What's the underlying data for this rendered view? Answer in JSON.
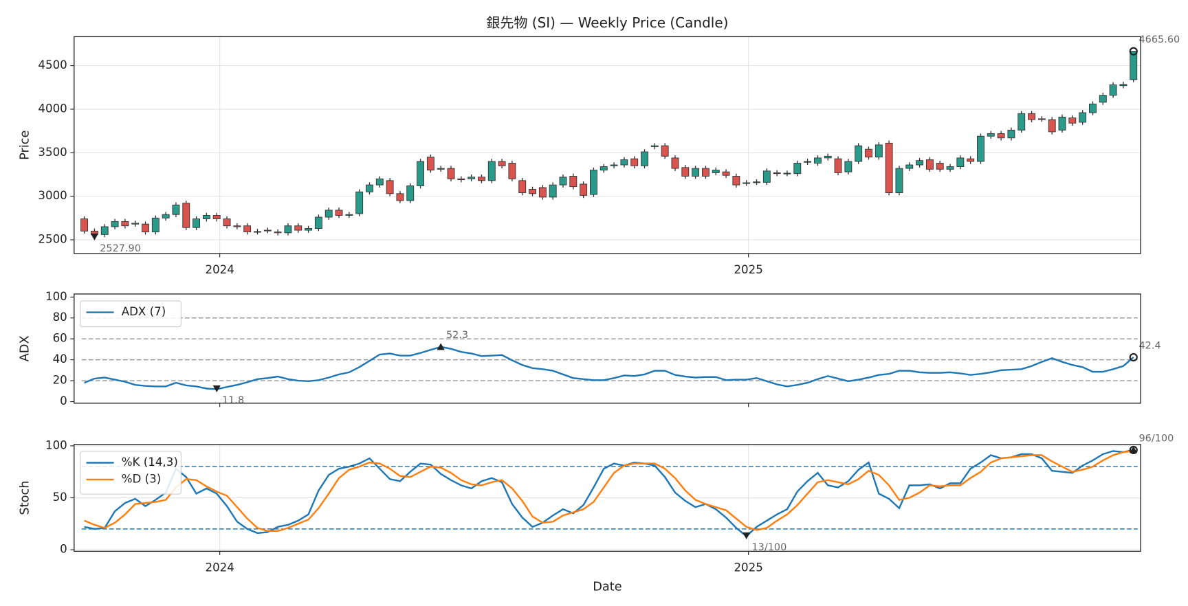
{
  "chart_data": [
    {
      "type": "candle",
      "title": "銀先物 (SI) — Weekly Price (Candle)",
      "ylabel": "Price",
      "xlim": [
        -1,
        103.7
      ],
      "ylim": [
        2342,
        4833
      ],
      "xticks": [
        {
          "value": 13.3,
          "label": "2024"
        },
        {
          "value": 65.2,
          "label": "2025"
        }
      ],
      "yticks": [
        2500,
        3000,
        3500,
        4000,
        4500
      ],
      "grid": true,
      "up_color": "#2a9a8a",
      "down_color": "#d9534f",
      "open": [
        2740,
        2600,
        2560,
        2650,
        2710,
        2680,
        2680,
        2590,
        2750,
        2790,
        2920,
        2640,
        2740,
        2780,
        2740,
        2660,
        2660,
        2590,
        2610,
        2590,
        2580,
        2660,
        2610,
        2630,
        2760,
        2840,
        2780,
        2800,
        3050,
        3130,
        3180,
        3030,
        2950,
        3120,
        3450,
        3310,
        3320,
        3200,
        3200,
        3220,
        3180,
        3400,
        3380,
        3180,
        3080,
        3100,
        2990,
        3130,
        3230,
        3140,
        3020,
        3300,
        3350,
        3360,
        3430,
        3350,
        3570,
        3580,
        3440,
        3330,
        3230,
        3320,
        3270,
        3280,
        3230,
        3150,
        3160,
        3160,
        3270,
        3260,
        3260,
        3390,
        3380,
        3440,
        3430,
        3280,
        3400,
        3540,
        3450,
        3610,
        3040,
        3320,
        3360,
        3420,
        3380,
        3310,
        3340,
        3430,
        3400,
        3690,
        3720,
        3670,
        3760,
        3950,
        3890,
        3880,
        3760,
        3900,
        3850,
        3960,
        4080,
        4160,
        4270,
        4340
      ],
      "high": [
        2770,
        2630,
        2680,
        2740,
        2740,
        2720,
        2710,
        2780,
        2820,
        2930,
        2950,
        2770,
        2810,
        2810,
        2770,
        2690,
        2690,
        2625,
        2640,
        2620,
        2690,
        2690,
        2660,
        2790,
        2870,
        2870,
        2820,
        3080,
        3160,
        3230,
        3210,
        3060,
        3150,
        3430,
        3480,
        3350,
        3350,
        3230,
        3250,
        3250,
        3430,
        3430,
        3410,
        3210,
        3110,
        3130,
        3160,
        3250,
        3260,
        3170,
        3330,
        3370,
        3390,
        3450,
        3460,
        3540,
        3610,
        3610,
        3470,
        3360,
        3350,
        3350,
        3330,
        3310,
        3260,
        3185,
        3195,
        3320,
        3300,
        3295,
        3410,
        3430,
        3470,
        3490,
        3460,
        3430,
        3610,
        3570,
        3620,
        3640,
        3350,
        3390,
        3440,
        3450,
        3410,
        3370,
        3470,
        3460,
        3720,
        3750,
        3750,
        3790,
        3980,
        3980,
        3920,
        3910,
        3940,
        3930,
        3990,
        4090,
        4190,
        4310,
        4315,
        4665.6
      ],
      "low": [
        2570,
        2527.9,
        2530,
        2620,
        2630,
        2650,
        2560,
        2560,
        2720,
        2760,
        2610,
        2610,
        2710,
        2710,
        2630,
        2620,
        2560,
        2560,
        2575,
        2550,
        2550,
        2580,
        2580,
        2600,
        2730,
        2750,
        2750,
        2770,
        3020,
        3100,
        3000,
        2920,
        2920,
        3090,
        3270,
        3280,
        3170,
        3160,
        3170,
        3150,
        3150,
        3320,
        3170,
        3010,
        3000,
        2960,
        2960,
        3100,
        3080,
        2980,
        2990,
        3270,
        3320,
        3330,
        3320,
        3320,
        3540,
        3430,
        3290,
        3200,
        3200,
        3200,
        3240,
        3210,
        3100,
        3120,
        3130,
        3130,
        3230,
        3230,
        3230,
        3360,
        3350,
        3410,
        3240,
        3250,
        3370,
        3420,
        3420,
        3010,
        3010,
        3290,
        3330,
        3280,
        3280,
        3280,
        3310,
        3370,
        3370,
        3660,
        3640,
        3640,
        3730,
        3850,
        3855,
        3710,
        3730,
        3810,
        3820,
        3930,
        4050,
        4130,
        4240,
        4310
      ],
      "close": [
        2600,
        2560,
        2650,
        2710,
        2660,
        2690,
        2590,
        2750,
        2790,
        2900,
        2640,
        2740,
        2780,
        2740,
        2660,
        2650,
        2590,
        2595,
        2605,
        2580,
        2660,
        2610,
        2630,
        2760,
        2840,
        2780,
        2790,
        3050,
        3130,
        3200,
        3030,
        2950,
        3120,
        3400,
        3300,
        3320,
        3200,
        3190,
        3220,
        3180,
        3400,
        3350,
        3200,
        3040,
        3030,
        2990,
        3130,
        3220,
        3110,
        3010,
        3300,
        3340,
        3360,
        3420,
        3350,
        3510,
        3580,
        3460,
        3320,
        3230,
        3320,
        3230,
        3300,
        3240,
        3130,
        3155,
        3165,
        3290,
        3260,
        3265,
        3380,
        3400,
        3440,
        3460,
        3270,
        3400,
        3580,
        3450,
        3590,
        3040,
        3320,
        3360,
        3410,
        3310,
        3310,
        3340,
        3440,
        3400,
        3690,
        3720,
        3670,
        3760,
        3950,
        3880,
        3885,
        3740,
        3910,
        3840,
        3960,
        4060,
        4160,
        4280,
        4285,
        4665.6
      ],
      "annotations": [
        {
          "x": 1,
          "value": 2527.9,
          "label": "2527.90",
          "marker": [
            "down"
          ]
        },
        {
          "x": 103,
          "value": 4665.6,
          "label": "4665.60",
          "marker": [
            "circle"
          ]
        }
      ]
    },
    {
      "type": "line",
      "ylabel": "ADX",
      "xlim": [
        -1,
        103.7
      ],
      "ylim": [
        -1.5,
        102.9
      ],
      "yticks": [
        0,
        20,
        40,
        60,
        80,
        100
      ],
      "grid": false,
      "legend": "upper left",
      "hlines": [
        20,
        40,
        60,
        80
      ],
      "hline_color": "#999999",
      "series": [
        {
          "name": "ADX (7)",
          "color": "#1f77b4",
          "values": [
            18,
            22,
            23,
            21,
            19,
            16,
            15,
            14.5,
            14.5,
            18,
            15.5,
            14.5,
            12.5,
            11.8,
            14,
            16,
            18.5,
            21.5,
            22.5,
            24,
            21.5,
            20,
            19.5,
            20.5,
            23,
            26,
            28,
            33,
            39,
            45,
            46,
            44,
            44,
            46.5,
            49.5,
            52.3,
            50.5,
            47.5,
            46,
            43.5,
            44,
            44.5,
            39.5,
            35,
            32,
            31,
            29.5,
            26,
            22.5,
            21.5,
            20.5,
            20.5,
            22.5,
            25,
            24.5,
            26,
            29.5,
            29.5,
            25.5,
            24,
            23,
            23.5,
            23.5,
            20.5,
            21,
            21,
            22.5,
            19.5,
            16.5,
            14.5,
            16,
            18,
            21.5,
            24.5,
            22,
            19.5,
            21,
            23,
            25.5,
            26.5,
            29.5,
            29.5,
            28,
            27.5,
            27.5,
            28,
            27,
            25.5,
            26.5,
            28,
            30,
            30.5,
            31,
            34,
            38,
            41.5,
            38,
            35,
            33,
            28.5,
            28.5,
            31,
            34,
            42.4
          ]
        }
      ],
      "annotations": [
        {
          "x": 13,
          "value": 11.8,
          "label": "11.8",
          "marker": [
            "down"
          ]
        },
        {
          "x": 35,
          "value": 52.3,
          "label": "52.3",
          "marker": [
            "up"
          ]
        },
        {
          "x": 103,
          "value": 42.4,
          "label": "42.4",
          "marker": [
            "circle"
          ]
        }
      ]
    },
    {
      "type": "line",
      "ylabel": "Stoch",
      "xlabel": "Date",
      "xlim": [
        -1,
        103.7
      ],
      "ylim": [
        -1.5,
        101.4
      ],
      "xticks": [
        {
          "value": 13.3,
          "label": "2024"
        },
        {
          "value": 65.2,
          "label": "2025"
        }
      ],
      "yticks": [
        0,
        50,
        100
      ],
      "grid": true,
      "legend": "upper left",
      "hlines": [
        20,
        80
      ],
      "hline_color": "#1f77b4",
      "series": [
        {
          "name": "%K (14,3)",
          "color": "#1f77b4",
          "values": [
            22,
            20,
            21,
            37,
            45,
            49,
            42,
            48,
            55,
            78,
            70,
            54,
            59,
            54,
            42,
            27,
            20,
            16,
            17,
            22,
            24,
            28,
            34,
            57,
            72,
            78,
            80,
            83,
            88,
            78,
            68,
            66,
            75,
            83,
            82,
            73,
            67,
            62,
            59,
            66,
            69,
            65,
            44,
            31,
            22,
            26,
            33,
            39,
            35,
            43,
            60,
            78,
            83,
            81,
            84,
            83,
            81,
            70,
            55,
            47,
            41,
            44,
            39,
            31,
            21,
            13,
            22,
            28,
            34,
            39,
            56,
            66,
            74,
            62,
            60,
            66,
            77,
            84,
            54,
            49,
            40,
            62,
            62,
            63,
            59,
            64,
            64,
            78,
            84,
            91,
            88,
            89,
            92,
            92,
            88,
            76,
            75,
            74,
            81,
            86,
            92,
            95,
            94,
            96
          ]
        },
        {
          "name": "%D (3)",
          "color": "#ff7f0e",
          "values": [
            28,
            24,
            21,
            26,
            34,
            44,
            45,
            46,
            48,
            60,
            68,
            67,
            61,
            56,
            52,
            41,
            30,
            21,
            18,
            18,
            21,
            25,
            29,
            40,
            54,
            69,
            77,
            80,
            84,
            83,
            78,
            71,
            70,
            75,
            80,
            79,
            74,
            67,
            63,
            62,
            65,
            67,
            59,
            47,
            32,
            26,
            27,
            33,
            36,
            39,
            46,
            60,
            74,
            81,
            83,
            83,
            83,
            78,
            69,
            57,
            48,
            44,
            41,
            38,
            30,
            22,
            19,
            21,
            28,
            34,
            43,
            54,
            65,
            67,
            65,
            63,
            68,
            76,
            72,
            62,
            48,
            50,
            55,
            62,
            61,
            62,
            62,
            69,
            75,
            84,
            88,
            89,
            90,
            91,
            91,
            85,
            80,
            75,
            77,
            80,
            86,
            91,
            94,
            95
          ]
        }
      ],
      "annotations": [
        {
          "x": 65,
          "value": 13,
          "label": "13/100",
          "marker": [
            "down"
          ]
        },
        {
          "x": 103,
          "value": 96,
          "label": "96/100",
          "marker": [
            "up",
            "circle"
          ]
        }
      ]
    }
  ]
}
